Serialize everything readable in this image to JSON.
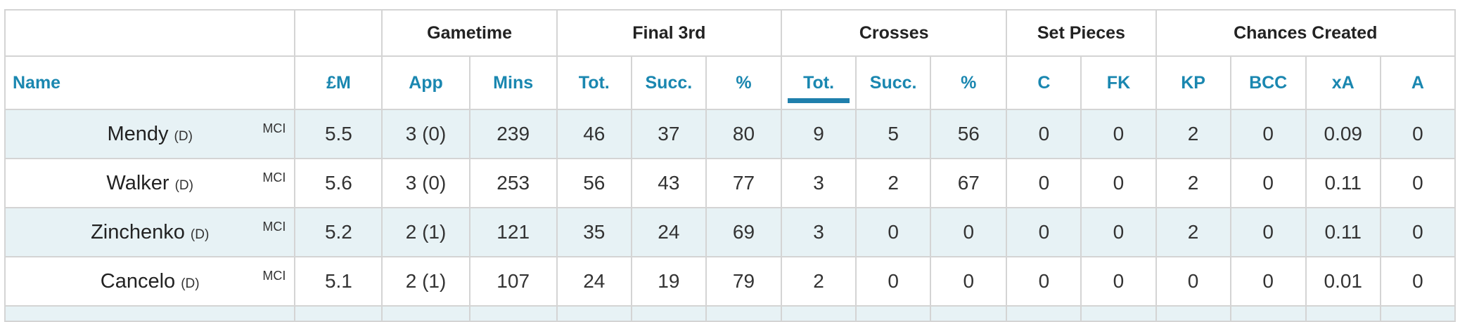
{
  "groups": {
    "gametime": "Gametime",
    "final3rd": "Final 3rd",
    "crosses": "Crosses",
    "setpieces": "Set Pieces",
    "chances": "Chances Created"
  },
  "columns": {
    "name": "Name",
    "price": "£M",
    "app": "App",
    "mins": "Mins",
    "f3_tot": "Tot.",
    "f3_succ": "Succ.",
    "f3_pct": "%",
    "cr_tot": "Tot.",
    "cr_succ": "Succ.",
    "cr_pct": "%",
    "sp_c": "C",
    "sp_fk": "FK",
    "kp": "KP",
    "bcc": "BCC",
    "xa": "xA",
    "a": "A"
  },
  "sorted_column": "Crosses Tot.",
  "colors": {
    "header_blue": "#1a87b0",
    "row_alt": "#e7f2f5",
    "sort_bar": "#1f7fac"
  },
  "rows": [
    {
      "name": "Mendy",
      "pos": "(D)",
      "team": "MCI",
      "price": "5.5",
      "app": "3 (0)",
      "mins": "239",
      "f3_tot": "46",
      "f3_succ": "37",
      "f3_pct": "80",
      "cr_tot": "9",
      "cr_succ": "5",
      "cr_pct": "56",
      "sp_c": "0",
      "sp_fk": "0",
      "kp": "2",
      "bcc": "0",
      "xa": "0.09",
      "a": "0"
    },
    {
      "name": "Walker",
      "pos": "(D)",
      "team": "MCI",
      "price": "5.6",
      "app": "3 (0)",
      "mins": "253",
      "f3_tot": "56",
      "f3_succ": "43",
      "f3_pct": "77",
      "cr_tot": "3",
      "cr_succ": "2",
      "cr_pct": "67",
      "sp_c": "0",
      "sp_fk": "0",
      "kp": "2",
      "bcc": "0",
      "xa": "0.11",
      "a": "0"
    },
    {
      "name": "Zinchenko",
      "pos": "(D)",
      "team": "MCI",
      "price": "5.2",
      "app": "2 (1)",
      "mins": "121",
      "f3_tot": "35",
      "f3_succ": "24",
      "f3_pct": "69",
      "cr_tot": "3",
      "cr_succ": "0",
      "cr_pct": "0",
      "sp_c": "0",
      "sp_fk": "0",
      "kp": "2",
      "bcc": "0",
      "xa": "0.11",
      "a": "0"
    },
    {
      "name": "Cancelo",
      "pos": "(D)",
      "team": "MCI",
      "price": "5.1",
      "app": "2 (1)",
      "mins": "107",
      "f3_tot": "24",
      "f3_succ": "19",
      "f3_pct": "79",
      "cr_tot": "2",
      "cr_succ": "0",
      "cr_pct": "0",
      "sp_c": "0",
      "sp_fk": "0",
      "kp": "0",
      "bcc": "0",
      "xa": "0.01",
      "a": "0"
    }
  ]
}
